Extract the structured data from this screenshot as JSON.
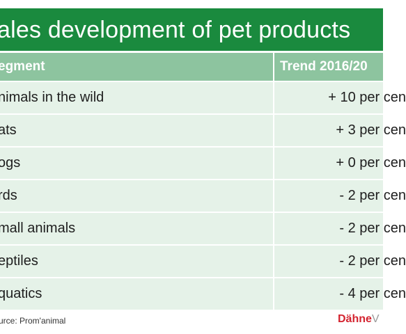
{
  "chart_data": {
    "type": "table",
    "title": "ales development of pet products",
    "columns": [
      "egment",
      "Trend 2016/20"
    ],
    "rows": [
      {
        "segment": "nimals in the wild",
        "trend": "+ 10 per cen"
      },
      {
        "segment": "ats",
        "trend": "+ 3 per cen"
      },
      {
        "segment": "ogs",
        "trend": "+ 0 per cen"
      },
      {
        "segment": "rds",
        "trend": "- 2 per cen"
      },
      {
        "segment": "mall animals",
        "trend": "- 2 per cen"
      },
      {
        "segment": "eptiles",
        "trend": "- 2 per cen"
      },
      {
        "segment": "quatics",
        "trend": "- 4 per cen"
      }
    ],
    "source": "urce: Prom'animal",
    "logo": {
      "part1": "Dähne",
      "part2": "V"
    },
    "colors": {
      "title_band": "#1a8a3e",
      "header_band": "#8dc49f",
      "row_band": "#e5f2e8",
      "logo_red": "#d4232f",
      "logo_grey": "#9a9a9a"
    }
  }
}
